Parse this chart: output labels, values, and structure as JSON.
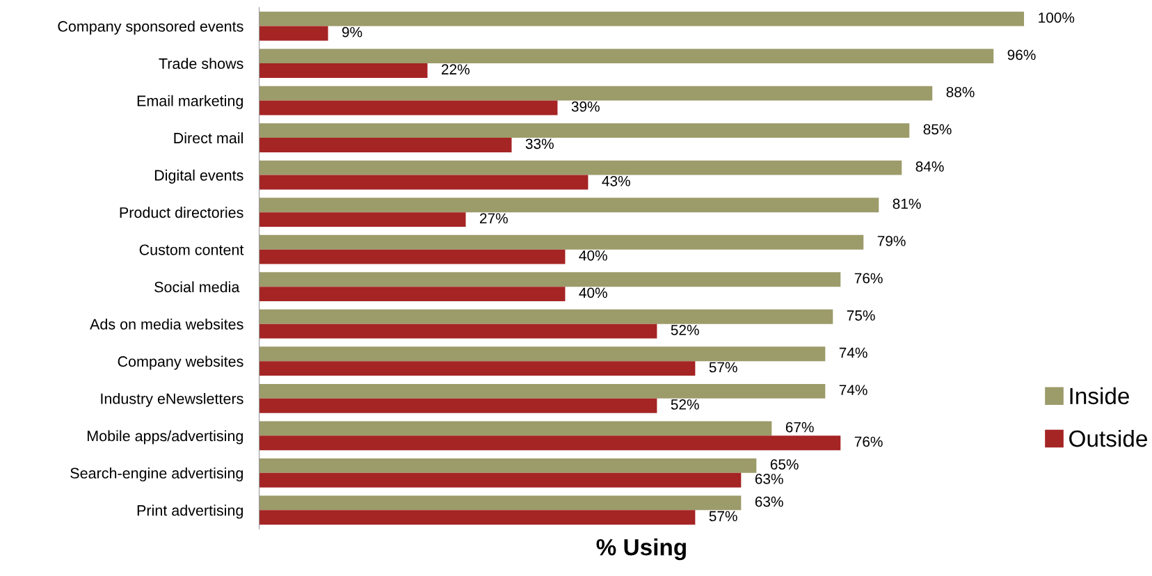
{
  "chart_data": {
    "type": "bar",
    "orientation": "horizontal",
    "xlabel": "% Using",
    "categories": [
      "Company sponsored events",
      "Trade shows",
      "Email marketing",
      "Direct mail",
      "Digital events",
      "Product directories",
      "Custom content",
      "Social media ",
      "Ads on media websites",
      "Company websites",
      "Industry eNewsletters",
      "Mobile apps/advertising",
      "Search-engine advertising",
      "Print advertising"
    ],
    "series": [
      {
        "name": "Inside",
        "color": "#9c9b6a",
        "values": [
          100,
          96,
          88,
          85,
          84,
          81,
          79,
          76,
          75,
          74,
          74,
          67,
          65,
          63
        ],
        "value_labels": [
          "100%",
          "96%",
          "88%",
          "85%",
          "84%",
          "81%",
          "79%",
          "76%",
          "75%",
          "74%",
          "74%",
          "67%",
          "65%",
          "63%"
        ]
      },
      {
        "name": "Outside",
        "color": "#a52424",
        "values": [
          9,
          22,
          39,
          33,
          43,
          27,
          40,
          40,
          52,
          57,
          52,
          76,
          63,
          57
        ],
        "value_labels": [
          "9%",
          "22%",
          "39%",
          "33%",
          "43%",
          "27%",
          "40%",
          "40%",
          "52%",
          "57%",
          "52%",
          "76%",
          "63%",
          "57%"
        ]
      }
    ],
    "xlim": [
      0,
      100
    ],
    "tick_labels": "y",
    "grid": false,
    "legend": "right"
  }
}
